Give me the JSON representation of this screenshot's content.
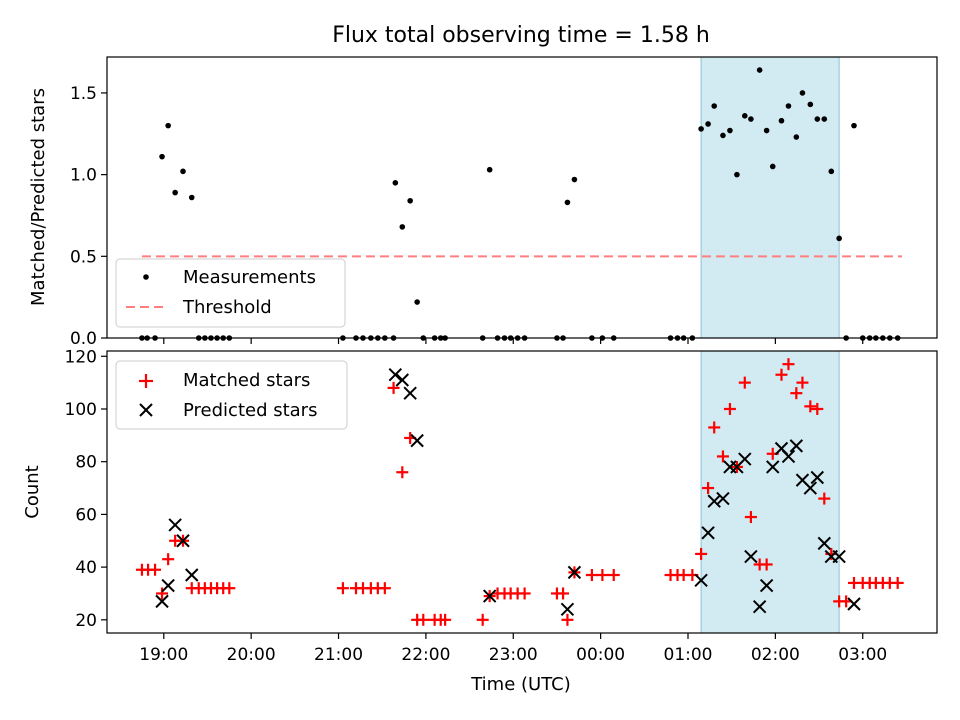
{
  "title": "Flux total observing time = 1.58 h",
  "xlabel": "Time (UTC)",
  "highlight": {
    "start": 25.15,
    "end": 26.73,
    "color": "#add8e6"
  },
  "chart_data": [
    {
      "type": "scatter",
      "ylabel": "Matched/Predicted stars",
      "ylim": [
        0,
        1.72
      ],
      "yticks": [
        0.0,
        0.5,
        1.0,
        1.5
      ],
      "ytick_labels": [
        "0.0",
        "0.5",
        "1.0",
        "1.5"
      ],
      "legend": {
        "location": "lower-left",
        "items": [
          "Measurements",
          "Threshold"
        ]
      },
      "threshold": {
        "name": "Threshold",
        "value": 0.5,
        "x_range": [
          18.75,
          27.45
        ],
        "color": "#ff7f7f"
      },
      "series": [
        {
          "name": "Measurements",
          "color": "#000000",
          "points": [
            [
              18.75,
              0
            ],
            [
              18.81,
              0
            ],
            [
              18.9,
              0
            ],
            [
              18.98,
              1.11
            ],
            [
              19.05,
              1.3
            ],
            [
              19.13,
              0.89
            ],
            [
              19.22,
              1.02
            ],
            [
              19.32,
              0.86
            ],
            [
              19.4,
              0
            ],
            [
              19.47,
              0
            ],
            [
              19.54,
              0
            ],
            [
              19.61,
              0
            ],
            [
              19.68,
              0
            ],
            [
              19.75,
              0
            ],
            [
              21.05,
              0
            ],
            [
              21.2,
              0
            ],
            [
              21.28,
              0
            ],
            [
              21.37,
              0
            ],
            [
              21.45,
              0
            ],
            [
              21.53,
              0
            ],
            [
              21.63,
              0
            ],
            [
              21.65,
              0.95
            ],
            [
              21.73,
              0.68
            ],
            [
              21.82,
              0.84
            ],
            [
              21.9,
              0.22
            ],
            [
              21.97,
              0
            ],
            [
              22.1,
              0
            ],
            [
              22.17,
              0
            ],
            [
              22.22,
              0
            ],
            [
              22.65,
              0
            ],
            [
              22.73,
              1.03
            ],
            [
              22.82,
              0
            ],
            [
              22.9,
              0
            ],
            [
              22.97,
              0
            ],
            [
              23.05,
              0
            ],
            [
              23.13,
              0
            ],
            [
              23.5,
              0
            ],
            [
              23.57,
              0
            ],
            [
              23.62,
              0.83
            ],
            [
              23.7,
              0.97
            ],
            [
              23.9,
              0
            ],
            [
              24.02,
              0
            ],
            [
              24.15,
              0
            ],
            [
              24.8,
              0
            ],
            [
              24.88,
              0
            ],
            [
              24.95,
              0
            ],
            [
              25.05,
              0
            ],
            [
              25.15,
              1.28
            ],
            [
              25.23,
              1.31
            ],
            [
              25.3,
              1.42
            ],
            [
              25.4,
              1.24
            ],
            [
              25.48,
              1.27
            ],
            [
              25.56,
              1.0
            ],
            [
              25.65,
              1.36
            ],
            [
              25.72,
              1.34
            ],
            [
              25.82,
              1.64
            ],
            [
              25.9,
              1.27
            ],
            [
              25.97,
              1.05
            ],
            [
              26.07,
              1.33
            ],
            [
              26.15,
              1.42
            ],
            [
              26.24,
              1.23
            ],
            [
              26.31,
              1.5
            ],
            [
              26.4,
              1.43
            ],
            [
              26.48,
              1.34
            ],
            [
              26.56,
              1.34
            ],
            [
              26.64,
              1.02
            ],
            [
              26.73,
              0.61
            ],
            [
              26.81,
              0
            ],
            [
              26.9,
              1.3
            ],
            [
              27.0,
              0
            ],
            [
              27.08,
              0
            ],
            [
              27.15,
              0
            ],
            [
              27.23,
              0
            ],
            [
              27.31,
              0
            ],
            [
              27.4,
              0
            ]
          ]
        }
      ]
    },
    {
      "type": "scatter",
      "ylabel": "Count",
      "ylim": [
        15,
        122
      ],
      "yticks": [
        20,
        40,
        60,
        80,
        100,
        120
      ],
      "ytick_labels": [
        "20",
        "40",
        "60",
        "80",
        "100",
        "120"
      ],
      "xticks": [
        19,
        20,
        21,
        22,
        23,
        24,
        25,
        26,
        27
      ],
      "xtick_labels": [
        "19:00",
        "20:00",
        "21:00",
        "22:00",
        "23:00",
        "00:00",
        "01:00",
        "02:00",
        "03:00"
      ],
      "xlim": [
        18.35,
        27.85
      ],
      "legend": {
        "location": "top-left",
        "items": [
          "Matched stars",
          "Predicted stars"
        ]
      },
      "series": [
        {
          "name": "Matched stars",
          "marker": "plus",
          "color": "#ff0000",
          "points": [
            [
              18.75,
              39
            ],
            [
              18.82,
              39
            ],
            [
              18.9,
              39
            ],
            [
              18.98,
              30
            ],
            [
              19.05,
              43
            ],
            [
              19.13,
              50
            ],
            [
              19.22,
              50
            ],
            [
              19.32,
              32
            ],
            [
              19.4,
              32
            ],
            [
              19.47,
              32
            ],
            [
              19.54,
              32
            ],
            [
              19.61,
              32
            ],
            [
              19.68,
              32
            ],
            [
              19.75,
              32
            ],
            [
              21.05,
              32
            ],
            [
              21.2,
              32
            ],
            [
              21.28,
              32
            ],
            [
              21.37,
              32
            ],
            [
              21.45,
              32
            ],
            [
              21.53,
              32
            ],
            [
              21.63,
              108
            ],
            [
              21.73,
              76
            ],
            [
              21.82,
              89
            ],
            [
              21.9,
              20
            ],
            [
              21.97,
              20
            ],
            [
              22.1,
              20
            ],
            [
              22.17,
              20
            ],
            [
              22.22,
              20
            ],
            [
              22.65,
              20
            ],
            [
              22.73,
              29
            ],
            [
              22.82,
              30
            ],
            [
              22.9,
              30
            ],
            [
              22.97,
              30
            ],
            [
              23.05,
              30
            ],
            [
              23.13,
              30
            ],
            [
              23.5,
              30
            ],
            [
              23.57,
              30
            ],
            [
              23.62,
              20
            ],
            [
              23.7,
              38
            ],
            [
              23.9,
              37
            ],
            [
              24.02,
              37
            ],
            [
              24.15,
              37
            ],
            [
              24.8,
              37
            ],
            [
              24.88,
              37
            ],
            [
              24.95,
              37
            ],
            [
              25.05,
              37
            ],
            [
              25.15,
              45
            ],
            [
              25.23,
              70
            ],
            [
              25.3,
              93
            ],
            [
              25.4,
              82
            ],
            [
              25.48,
              100
            ],
            [
              25.56,
              78
            ],
            [
              25.65,
              110
            ],
            [
              25.72,
              59
            ],
            [
              25.82,
              41
            ],
            [
              25.9,
              41
            ],
            [
              25.97,
              83
            ],
            [
              26.07,
              113
            ],
            [
              26.15,
              117
            ],
            [
              26.24,
              106
            ],
            [
              26.31,
              110
            ],
            [
              26.4,
              101
            ],
            [
              26.48,
              100
            ],
            [
              26.56,
              66
            ],
            [
              26.64,
              45
            ],
            [
              26.73,
              27
            ],
            [
              26.81,
              27
            ],
            [
              26.9,
              34
            ],
            [
              27.0,
              34
            ],
            [
              27.08,
              34
            ],
            [
              27.15,
              34
            ],
            [
              27.23,
              34
            ],
            [
              27.31,
              34
            ],
            [
              27.4,
              34
            ]
          ]
        },
        {
          "name": "Predicted stars",
          "marker": "x",
          "color": "#000000",
          "points": [
            [
              18.98,
              27
            ],
            [
              19.05,
              33
            ],
            [
              19.13,
              56
            ],
            [
              19.22,
              50
            ],
            [
              19.32,
              37
            ],
            [
              21.65,
              113
            ],
            [
              21.73,
              111
            ],
            [
              21.82,
              106
            ],
            [
              21.9,
              88
            ],
            [
              22.73,
              29
            ],
            [
              23.62,
              24
            ],
            [
              23.7,
              38
            ],
            [
              25.15,
              35
            ],
            [
              25.23,
              53
            ],
            [
              25.3,
              65
            ],
            [
              25.4,
              66
            ],
            [
              25.48,
              78
            ],
            [
              25.56,
              78
            ],
            [
              25.65,
              81
            ],
            [
              25.72,
              44
            ],
            [
              25.82,
              25
            ],
            [
              25.9,
              33
            ],
            [
              25.97,
              78
            ],
            [
              26.07,
              85
            ],
            [
              26.15,
              82
            ],
            [
              26.24,
              86
            ],
            [
              26.31,
              73
            ],
            [
              26.4,
              70
            ],
            [
              26.48,
              74
            ],
            [
              26.56,
              49
            ],
            [
              26.64,
              44
            ],
            [
              26.73,
              44
            ],
            [
              26.9,
              26
            ]
          ]
        }
      ]
    }
  ]
}
